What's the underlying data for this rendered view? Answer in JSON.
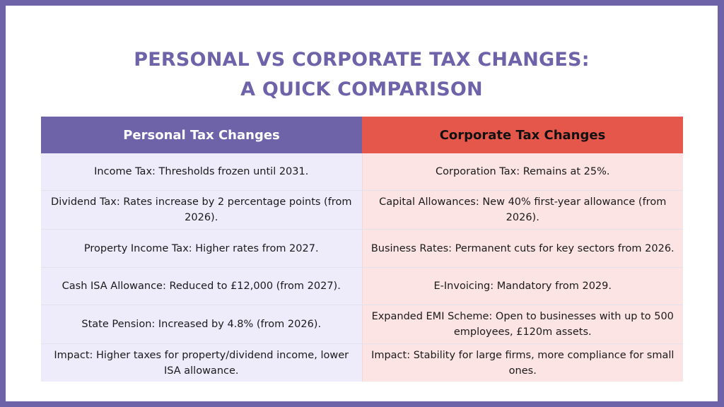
{
  "title": {
    "line1": "PERSONAL VS CORPORATE TAX CHANGES:",
    "line2": "A QUICK COMPARISON"
  },
  "colors": {
    "frame": "#6e63a9",
    "title": "#6e63a9",
    "personal_header": "#6e63a9",
    "corporate_header": "#e5574b",
    "personal_cell": "#eeebfb",
    "corporate_cell": "#fce4e4"
  },
  "table": {
    "headers": {
      "personal": "Personal Tax Changes",
      "corporate": "Corporate Tax Changes"
    },
    "rows": [
      {
        "personal": "Income Tax: Thresholds frozen until 2031.",
        "corporate": "Corporation Tax: Remains at 25%."
      },
      {
        "personal": "Dividend Tax: Rates increase by 2 percentage points (from 2026).",
        "corporate": "Capital Allowances: New 40% first-year allowance (from 2026)."
      },
      {
        "personal": "Property Income Tax: Higher rates from 2027.",
        "corporate": "Business Rates: Permanent cuts for key sectors from 2026."
      },
      {
        "personal": "Cash ISA Allowance: Reduced to £12,000 (from 2027).",
        "corporate": "E-Invoicing: Mandatory from 2029."
      },
      {
        "personal": "State Pension: Increased by 4.8% (from 2026).",
        "corporate": "Expanded EMI Scheme: Open to businesses with up to 500 employees, £120m assets."
      },
      {
        "personal": "Impact: Higher taxes for property/dividend income, lower ISA allowance.",
        "corporate": "Impact: Stability for large firms, more compliance for small ones."
      }
    ]
  }
}
